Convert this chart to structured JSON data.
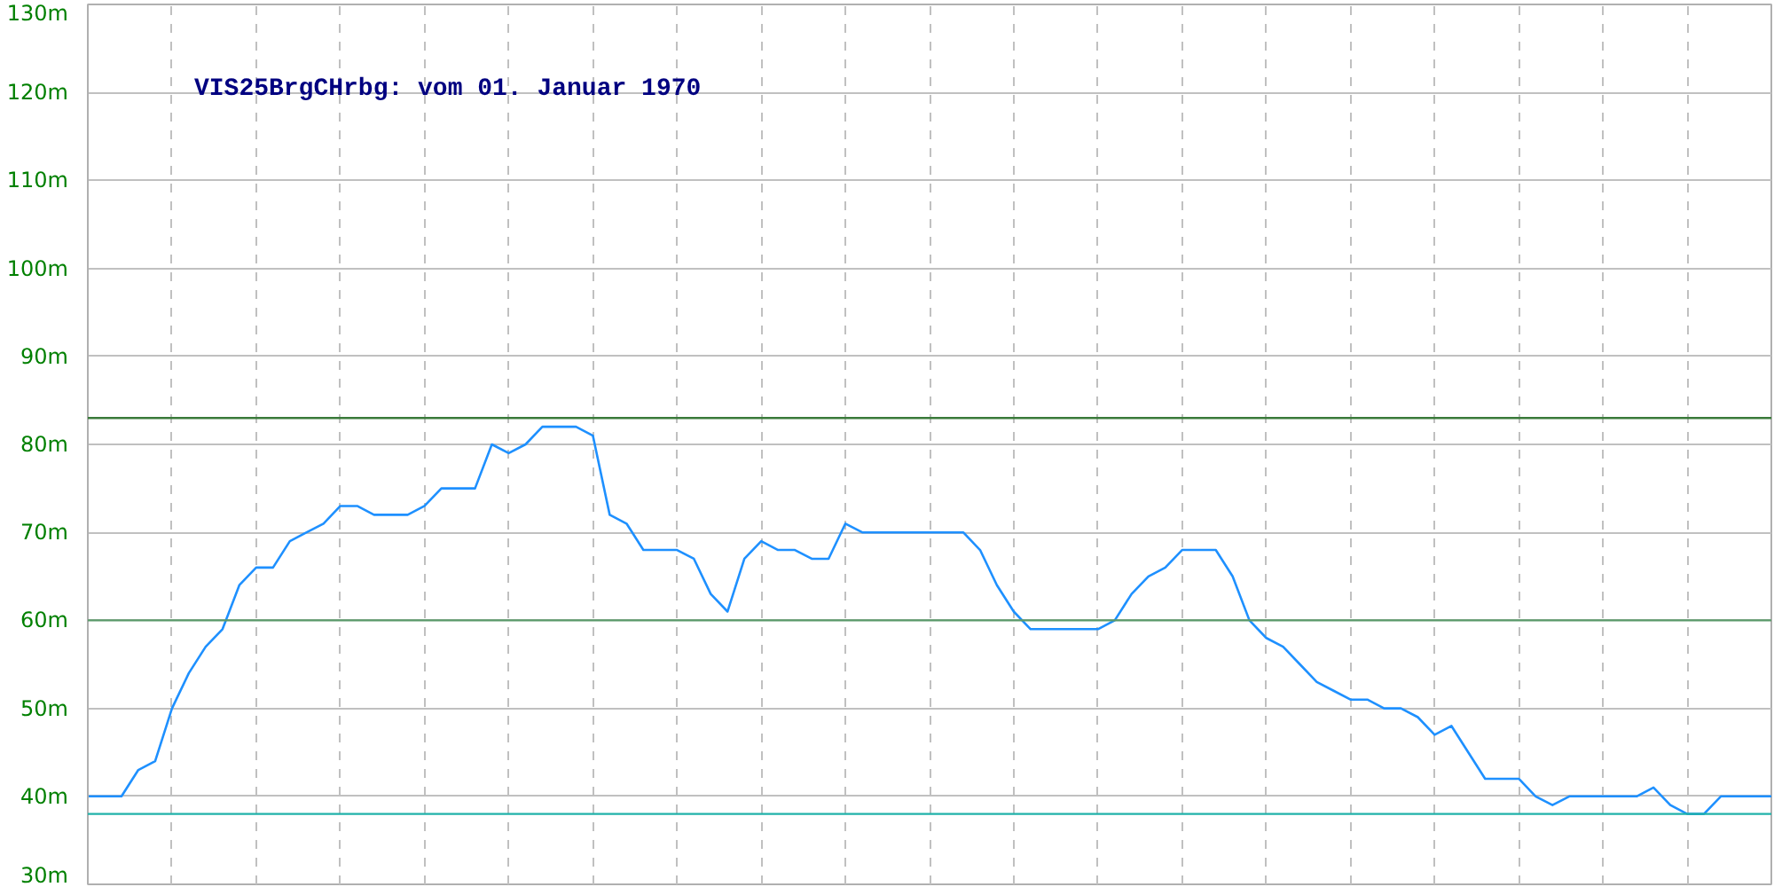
{
  "chart_data": {
    "type": "line",
    "title": "VIS25BrgCHrbg: vom 01. Januar 1970",
    "categories": [
      null,
      null,
      null,
      null,
      null,
      null,
      null,
      null,
      null,
      null,
      null,
      null,
      null,
      null,
      null,
      null,
      null,
      null,
      null,
      null,
      null,
      null,
      null,
      null,
      null,
      null,
      null,
      null,
      null,
      null,
      null,
      null,
      null,
      null,
      null,
      null,
      null,
      null,
      null,
      null,
      null,
      null,
      null,
      null,
      null,
      null,
      null,
      null,
      null,
      null,
      null,
      null,
      null,
      null,
      null,
      null,
      null,
      null,
      null,
      null,
      null,
      null,
      null,
      null,
      null,
      null,
      null,
      null,
      null,
      null,
      null,
      null,
      null,
      null,
      null,
      null,
      null,
      null,
      null,
      null,
      null,
      null,
      null,
      null,
      null,
      null,
      null,
      null,
      null,
      null,
      null,
      null,
      null,
      null,
      null,
      null,
      null,
      null,
      null,
      null,
      null
    ],
    "series": [
      {
        "color": "#1e90ff",
        "values": [
          40,
          40,
          40,
          43,
          44,
          50,
          54,
          57,
          59,
          64,
          66,
          66,
          69,
          70,
          71,
          73,
          73,
          72,
          72,
          72,
          73,
          75,
          75,
          75,
          80,
          79,
          80,
          82,
          82,
          82,
          81,
          72,
          71,
          68,
          68,
          68,
          67,
          63,
          61,
          67,
          69,
          68,
          68,
          67,
          67,
          71,
          70,
          70,
          70,
          70,
          70,
          70,
          70,
          68,
          64,
          61,
          59,
          59,
          59,
          59,
          59,
          60,
          63,
          65,
          66,
          68,
          68,
          68,
          65,
          60,
          58,
          57,
          55,
          53,
          52,
          51,
          51,
          50,
          50,
          49,
          47,
          48,
          45,
          42,
          42,
          42,
          40,
          39,
          40,
          40,
          40,
          40,
          40,
          41,
          39,
          38,
          38,
          40,
          40,
          40,
          40
        ]
      }
    ],
    "ylim": [
      30,
      130
    ],
    "yticks": [
      {
        "value": 30,
        "label": "30m"
      },
      {
        "value": 40,
        "label": "40m"
      },
      {
        "value": 50,
        "label": "50m"
      },
      {
        "value": 60,
        "label": "60m"
      },
      {
        "value": 70,
        "label": "70m"
      },
      {
        "value": 80,
        "label": "80m"
      },
      {
        "value": 90,
        "label": "90m"
      },
      {
        "value": 100,
        "label": "100m"
      },
      {
        "value": 110,
        "label": "110m"
      },
      {
        "value": 120,
        "label": "120m"
      },
      {
        "value": 130,
        "label": "130m"
      }
    ],
    "tick_labels": "y",
    "grid": true,
    "ref_lines": [
      {
        "axis": "y",
        "value": 83,
        "color": "#3a7a3a"
      },
      {
        "axis": "y",
        "value": 60,
        "color": "#5a9a6a"
      },
      {
        "axis": "y",
        "value": 38,
        "color": "#20b2aa"
      }
    ]
  }
}
